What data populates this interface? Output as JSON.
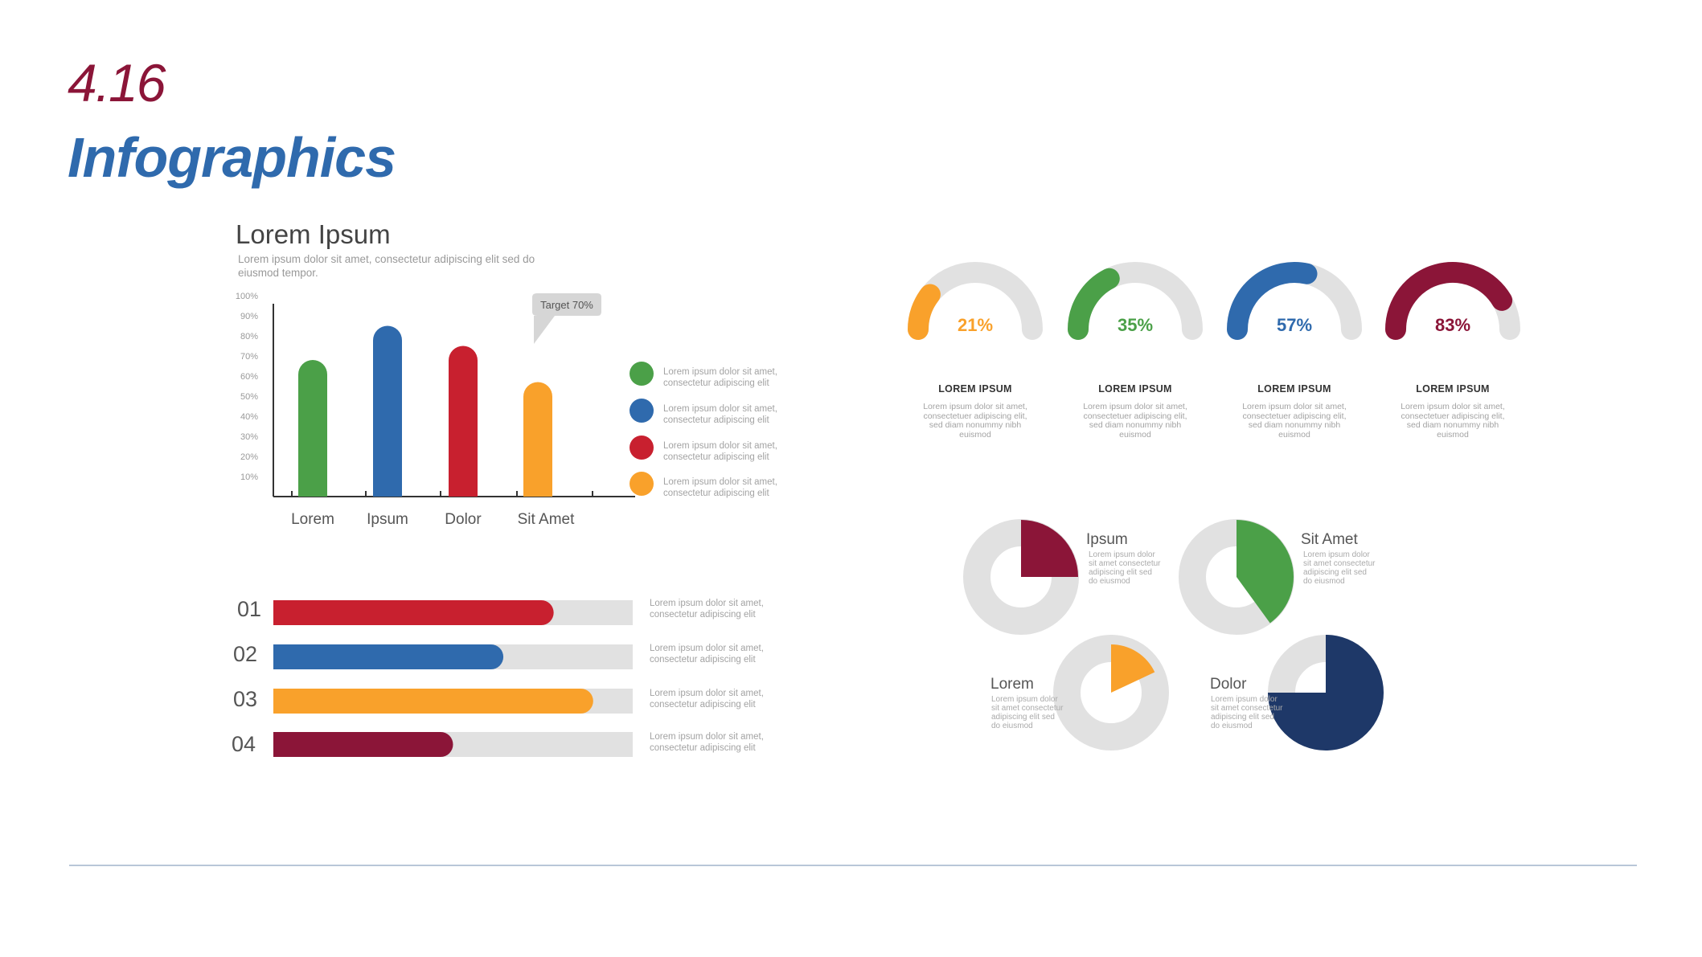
{
  "page": {
    "number": "4.16",
    "title": "Infographics"
  },
  "colors": {
    "green": "#4ba048",
    "blue": "#2f6aad",
    "red": "#c8202f",
    "orange": "#f9a12b",
    "maroon": "#8b1538",
    "navy": "#1e3868",
    "track": "#e1e1e1"
  },
  "bar_section": {
    "title": "Lorem Ipsum",
    "subtitle": "Lorem ipsum dolor sit amet,  consectetur adipiscing elit sed do eiusmod tempor.",
    "target_label": "Target 70%",
    "legend": [
      {
        "text": "Lorem ipsum dolor sit amet, consectetur adipiscing elit",
        "color": "#4ba048"
      },
      {
        "text": "Lorem ipsum dolor sit amet, consectetur adipiscing elit",
        "color": "#2f6aad"
      },
      {
        "text": "Lorem ipsum dolor sit amet, consectetur adipiscing elit",
        "color": "#c8202f"
      },
      {
        "text": "Lorem ipsum dolor sit amet, consectetur adipiscing elit",
        "color": "#f9a12b"
      }
    ]
  },
  "hbar_section": {
    "rows": [
      {
        "label": "01",
        "note": "Lorem ipsum dolor sit amet, consectetur adipiscing elit"
      },
      {
        "label": "02",
        "note": "Lorem ipsum dolor sit amet, consectetur adipiscing elit"
      },
      {
        "label": "03",
        "note": "Lorem ipsum dolor sit amet, consectetur adipiscing elit"
      },
      {
        "label": "04",
        "note": "Lorem ipsum dolor sit amet, consectetur adipiscing elit"
      }
    ]
  },
  "gauges": [
    {
      "value_label": "21%",
      "heading": "LOREM IPSUM",
      "desc": "Lorem ipsum dolor sit amet, consectetuer adipiscing elit, sed diam nonummy nibh euismod"
    },
    {
      "value_label": "35%",
      "heading": "LOREM IPSUM",
      "desc": "Lorem ipsum dolor sit amet, consectetuer adipiscing elit, sed diam nonummy nibh euismod"
    },
    {
      "value_label": "57%",
      "heading": "LOREM IPSUM",
      "desc": "Lorem ipsum dolor sit amet, consectetuer adipiscing elit, sed diam nonummy nibh euismod"
    },
    {
      "value_label": "83%",
      "heading": "LOREM IPSUM",
      "desc": "Lorem ipsum dolor sit amet, consectetuer adipiscing elit, sed diam nonummy nibh euismod"
    }
  ],
  "donuts": [
    {
      "title": "Ipsum",
      "desc": "Lorem ipsum dolor sit amet consectetur adipiscing elit sed do eiusmod"
    },
    {
      "title": "Sit Amet",
      "desc": "Lorem ipsum dolor sit amet consectetur adipiscing elit sed do eiusmod"
    },
    {
      "title": "Lorem",
      "desc": "Lorem ipsum dolor sit amet consectetur adipiscing elit sed do eiusmod"
    },
    {
      "title": "Dolor",
      "desc": "Lorem ipsum dolor sit amet consectetur adipiscing elit sed do eiusmod"
    }
  ],
  "chart_data": [
    {
      "type": "bar",
      "categories": [
        "Lorem",
        "Ipsum",
        "Dolor",
        "Sit Amet"
      ],
      "values": [
        68,
        85,
        75,
        57
      ],
      "colors": [
        "#4ba048",
        "#2f6aad",
        "#c8202f",
        "#f9a12b"
      ],
      "ylim": [
        0,
        100
      ],
      "yticks": [
        "10%",
        "20%",
        "30%",
        "40%",
        "50%",
        "60%",
        "70%",
        "80%",
        "90%",
        "100%"
      ],
      "annotation": "Target 70%"
    },
    {
      "type": "bar",
      "orientation": "horizontal",
      "categories": [
        "01",
        "02",
        "03",
        "04"
      ],
      "values": [
        78,
        64,
        89,
        50
      ],
      "colors": [
        "#c8202f",
        "#2f6aad",
        "#f9a12b",
        "#8b1538"
      ],
      "xlim": [
        0,
        100
      ]
    },
    {
      "type": "pie",
      "style": "semicircle-gauge",
      "categories": [
        "21%",
        "35%",
        "57%",
        "83%"
      ],
      "values": [
        21,
        35,
        57,
        83
      ],
      "colors": [
        "#f9a12b",
        "#4ba048",
        "#2f6aad",
        "#8b1538"
      ]
    },
    {
      "type": "pie",
      "style": "donut-slice",
      "categories": [
        "Ipsum",
        "Sit Amet",
        "Lorem",
        "Dolor"
      ],
      "values": [
        25,
        40,
        18,
        75
      ],
      "colors": [
        "#8b1538",
        "#4ba048",
        "#f9a12b",
        "#1e3868"
      ]
    }
  ]
}
